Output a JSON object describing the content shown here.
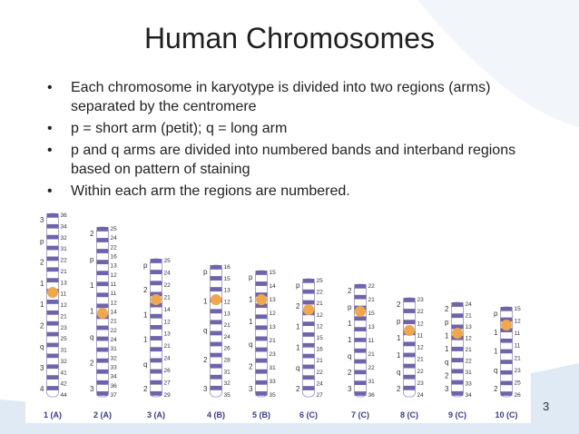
{
  "title": "Human Chromosomes",
  "bullets": [
    "Each chromosome in karyotype is divided into two regions (arms) separated by the centromere",
    "p = short arm (petit); q = long arm",
    "p and q arms are divided into numbered bands and interband regions based on pattern of staining",
    "Within each arm the regions are numbered."
  ],
  "chromosomes": [
    {
      "label": "1 (A)",
      "regions": [
        "3",
        "p",
        "2",
        "1",
        "1",
        "2",
        "q",
        "3",
        "4"
      ],
      "bands": [
        "36",
        "34",
        "32",
        "31",
        "22",
        "21",
        "13",
        "11",
        "12",
        "21",
        "23",
        "25",
        "31",
        "32",
        "41",
        "42",
        "44"
      ]
    },
    {
      "label": "2 (A)",
      "regions": [
        "2",
        "p",
        "1",
        "1",
        "q",
        "2",
        "3"
      ],
      "bands": [
        "25",
        "24",
        "22",
        "16",
        "13",
        "12",
        "11",
        "11",
        "12",
        "14",
        "21",
        "22",
        "24",
        "31",
        "32",
        "33",
        "34",
        "36",
        "37"
      ]
    },
    {
      "label": "3 (A)",
      "regions": [
        "p",
        "2",
        "1",
        "1",
        "q",
        "2"
      ],
      "bands": [
        "25",
        "24",
        "22",
        "21",
        "14",
        "12",
        "13",
        "21",
        "24",
        "26",
        "27",
        "29"
      ]
    },
    {
      "label": "4 (B)",
      "regions": [
        "p",
        "1",
        "q",
        "2",
        "3"
      ],
      "bands": [
        "16",
        "15",
        "13",
        "12",
        "13",
        "21",
        "24",
        "26",
        "28",
        "31",
        "32",
        "35"
      ]
    },
    {
      "label": "5 (B)",
      "regions": [
        "p",
        "1",
        "1",
        "q",
        "2",
        "3"
      ],
      "bands": [
        "15",
        "14",
        "13",
        "12",
        "13",
        "21",
        "23",
        "31",
        "33",
        "35"
      ]
    },
    {
      "label": "6 (C)",
      "regions": [
        "p",
        "2",
        "1",
        "1",
        "q",
        "2"
      ],
      "bands": [
        "25",
        "22",
        "21",
        "12",
        "12",
        "15",
        "16",
        "21",
        "22",
        "24",
        "27"
      ]
    },
    {
      "label": "7 (C)",
      "regions": [
        "2",
        "p",
        "1",
        "1",
        "q",
        "2",
        "3"
      ],
      "bands": [
        "22",
        "21",
        "15",
        "13",
        "11",
        "21",
        "22",
        "31",
        "36"
      ]
    },
    {
      "label": "8 (C)",
      "regions": [
        "2",
        "p",
        "1",
        "1",
        "q",
        "2"
      ],
      "bands": [
        "23",
        "22",
        "12",
        "11",
        "12",
        "21",
        "22",
        "23",
        "24"
      ]
    },
    {
      "label": "9 (C)",
      "regions": [
        "2",
        "p",
        "1",
        "1",
        "q",
        "2",
        "3"
      ],
      "bands": [
        "24",
        "21",
        "13",
        "12",
        "21",
        "22",
        "31",
        "33",
        "34"
      ]
    },
    {
      "label": "10 (C)",
      "regions": [
        "p",
        "1",
        "1",
        "q",
        "2"
      ],
      "bands": [
        "15",
        "12",
        "11",
        "11",
        "21",
        "23",
        "25",
        "26"
      ]
    }
  ],
  "page_number": "3"
}
